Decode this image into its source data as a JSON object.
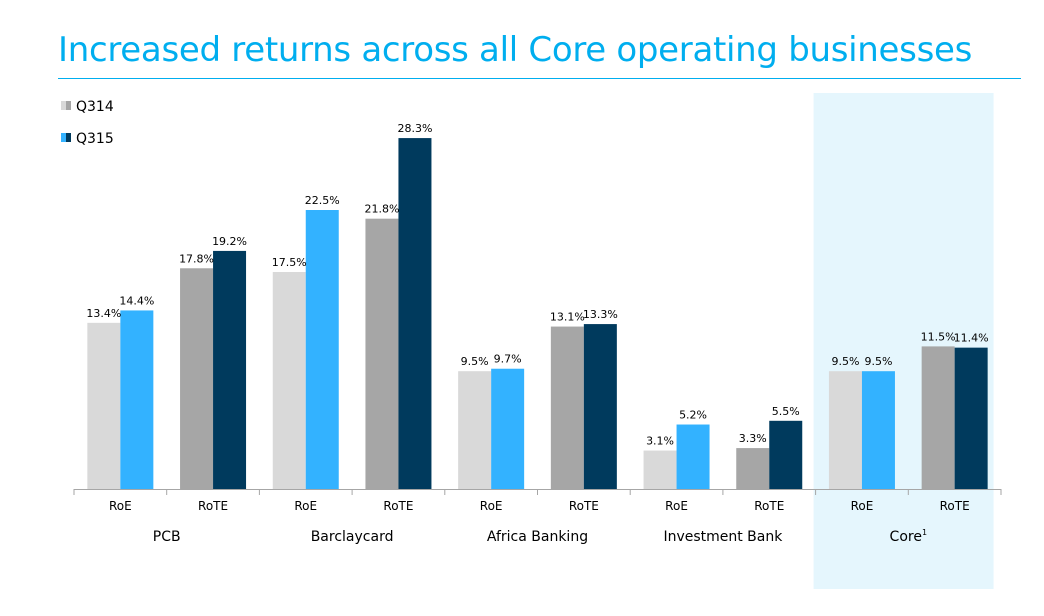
{
  "page": {
    "title": "Increased returns across all Core operating businesses"
  },
  "colors": {
    "title": "#00aeef",
    "q314_roe": "#d9d9d9",
    "q314_rote": "#a6a6a6",
    "q315_roe": "#33b2ff",
    "q315_rote": "#003a5d",
    "core_highlight": "#e5f6fd"
  },
  "chart_data": {
    "type": "bar",
    "title": "Increased returns across all Core operating businesses",
    "xlabel": "",
    "ylabel": "",
    "ylim": [
      0,
      30
    ],
    "grid": false,
    "legend": {
      "placement": "top-left",
      "entries": [
        "Q314",
        "Q315"
      ]
    },
    "series": [
      {
        "name": "Q314",
        "values": [
          13.4,
          17.8,
          17.5,
          21.8,
          9.5,
          13.1,
          3.1,
          3.3,
          9.5,
          11.5
        ]
      },
      {
        "name": "Q315",
        "values": [
          14.4,
          19.2,
          22.5,
          28.3,
          9.7,
          13.3,
          5.2,
          5.5,
          9.5,
          11.4
        ]
      }
    ],
    "value_labels": {
      "Q314": [
        "13.4%",
        "17.8%",
        "17.5%",
        "21.8%",
        "9.5%",
        "13.1%",
        "3.1%",
        "3.3%",
        "9.5%",
        "11.5%"
      ],
      "Q315": [
        "14.4%",
        "19.2%",
        "22.5%",
        "28.3%",
        "9.7%",
        "13.3%",
        "5.2%",
        "5.5%",
        "9.5%",
        "11.4%"
      ]
    },
    "categories": [
      "RoE",
      "RoTE",
      "RoE",
      "RoTE",
      "RoE",
      "RoTE",
      "RoE",
      "RoTE",
      "RoE",
      "RoTE"
    ],
    "groups": [
      {
        "label": "PCB"
      },
      {
        "label": "Barclaycard"
      },
      {
        "label": "Africa Banking"
      },
      {
        "label": "Investment Bank"
      },
      {
        "label": "Core",
        "footnote": "1"
      }
    ],
    "highlighted_group": "Core"
  }
}
